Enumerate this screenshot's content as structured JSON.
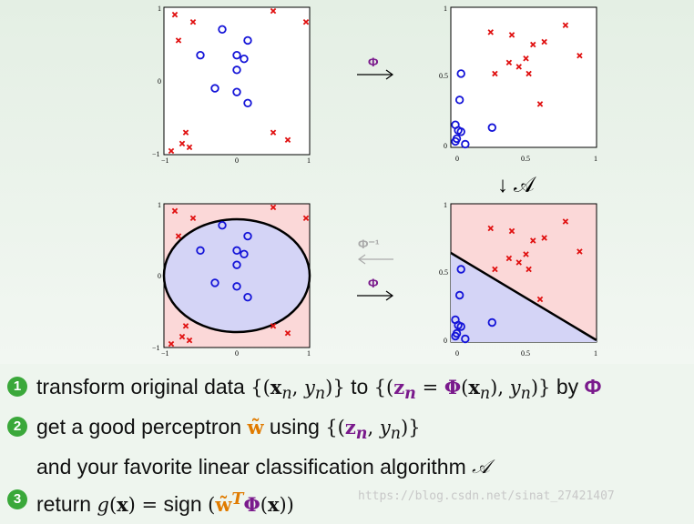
{
  "diagram": {
    "arrow_top": "Φ",
    "arrow_mid_faded": "Φ⁻¹",
    "arrow_mid": "Φ",
    "arrow_down": "↓ 𝒜",
    "ticks": {
      "tl": {
        "x": [
          "−1",
          "0",
          "1"
        ],
        "y": [
          "1",
          "0",
          "−1"
        ]
      },
      "tr": {
        "x": [
          "0",
          "0.5",
          "1"
        ],
        "y": [
          "1",
          "0.5",
          "0"
        ]
      },
      "bl": {
        "x": [
          "−1",
          "0",
          "1"
        ],
        "y": [
          "1",
          "0",
          "−1"
        ]
      },
      "br": {
        "x": [
          "0",
          "0.5",
          "1"
        ],
        "y": [
          "1",
          "0.5",
          "0"
        ]
      }
    },
    "x_space_points": {
      "crosses": [
        [
          -0.85,
          0.9
        ],
        [
          -0.6,
          0.8
        ],
        [
          0.5,
          0.95
        ],
        [
          0.95,
          0.8
        ],
        [
          -0.8,
          0.55
        ],
        [
          -0.7,
          -0.7
        ],
        [
          -0.75,
          -0.85
        ],
        [
          -0.65,
          -0.9
        ],
        [
          -0.9,
          -0.95
        ],
        [
          0.5,
          -0.7
        ],
        [
          0.7,
          -0.8
        ]
      ],
      "circles": [
        [
          -0.2,
          0.7
        ],
        [
          0.15,
          0.55
        ],
        [
          -0.5,
          0.35
        ],
        [
          0.0,
          0.35
        ],
        [
          0.1,
          0.3
        ],
        [
          0.0,
          0.15
        ],
        [
          -0.3,
          -0.1
        ],
        [
          0.0,
          -0.15
        ],
        [
          0.15,
          -0.3
        ]
      ]
    },
    "z_space_points": {
      "crosses": [
        [
          0.25,
          0.82
        ],
        [
          0.4,
          0.8
        ],
        [
          0.55,
          0.73
        ],
        [
          0.63,
          0.75
        ],
        [
          0.78,
          0.87
        ],
        [
          0.38,
          0.6
        ],
        [
          0.5,
          0.63
        ],
        [
          0.45,
          0.57
        ],
        [
          0.52,
          0.52
        ],
        [
          0.28,
          0.52
        ],
        [
          0.88,
          0.65
        ],
        [
          0.6,
          0.3
        ]
      ],
      "circles": [
        [
          0.04,
          0.52
        ],
        [
          0.03,
          0.33
        ],
        [
          0.0,
          0.15
        ],
        [
          0.04,
          0.1
        ],
        [
          0.01,
          0.05
        ],
        [
          0.0,
          0.03
        ],
        [
          0.07,
          0.01
        ],
        [
          0.26,
          0.13
        ],
        [
          0.02,
          0.11
        ]
      ]
    }
  },
  "bullets": {
    "b1": {
      "num": "1",
      "pre": "transform original data",
      "by": "by"
    },
    "b2": {
      "num": "2",
      "pre": "get a good perceptron",
      "using": "using",
      "line2": "and your favorite linear classification algorithm"
    },
    "b3": {
      "num": "3",
      "pre": "return",
      "sign": "sign"
    }
  },
  "watermark": "https://blog.csdn.net/sinat_27421407"
}
